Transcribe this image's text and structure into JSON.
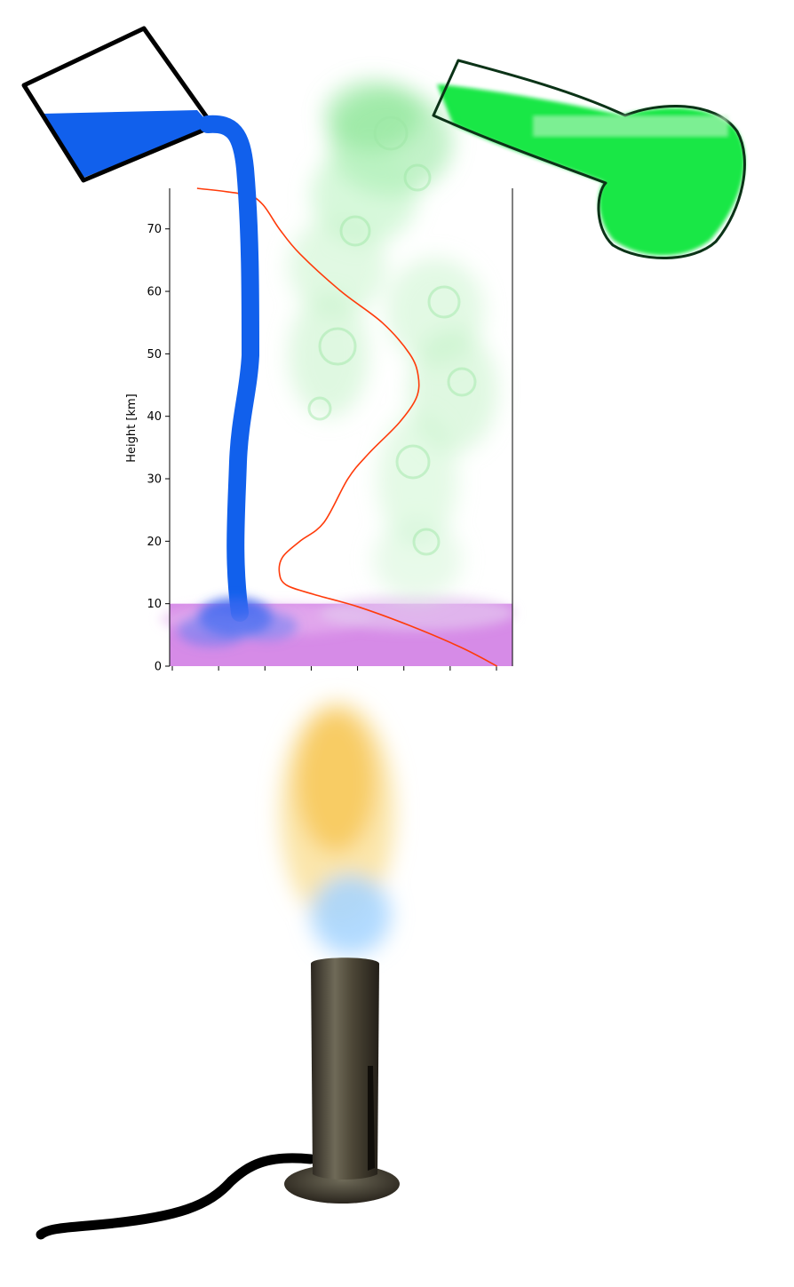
{
  "chart_data": {
    "type": "line",
    "ylabel": "Height [km]",
    "xlabel": "",
    "ylim": [
      0,
      76.5
    ],
    "xlim": [
      0,
      1
    ],
    "y_ticks": [
      0,
      10,
      20,
      30,
      40,
      50,
      60,
      70
    ],
    "x_tick_count": 8,
    "x_tick_labels": [],
    "series": [
      {
        "color": "#ff3b0a",
        "points": [
          [
            0.955,
            0
          ],
          [
            0.85,
            3
          ],
          [
            0.7,
            6.5
          ],
          [
            0.55,
            9.5
          ],
          [
            0.42,
            11.5
          ],
          [
            0.34,
            13
          ],
          [
            0.32,
            15
          ],
          [
            0.33,
            17.5
          ],
          [
            0.38,
            20
          ],
          [
            0.45,
            23
          ],
          [
            0.52,
            30
          ],
          [
            0.58,
            34
          ],
          [
            0.67,
            39
          ],
          [
            0.72,
            43
          ],
          [
            0.725,
            46.5
          ],
          [
            0.7,
            50
          ],
          [
            0.62,
            55
          ],
          [
            0.5,
            60
          ],
          [
            0.38,
            66
          ],
          [
            0.32,
            70
          ],
          [
            0.27,
            74
          ],
          [
            0.22,
            75.5
          ],
          [
            0.08,
            76.5
          ]
        ]
      }
    ],
    "bands": [
      {
        "from": 0,
        "to": 10,
        "color": "#d27ee4"
      }
    ],
    "grid": false
  },
  "colors": {
    "water": "#1160ec",
    "gas": "#0ae63c",
    "gas_smoke": "#aef0b4",
    "band": "#d27ee4",
    "line": "#ff3b0a",
    "burner": "#3a342a",
    "flame_outer": "#f8d678",
    "flame_inner": "#9fd2ff"
  }
}
